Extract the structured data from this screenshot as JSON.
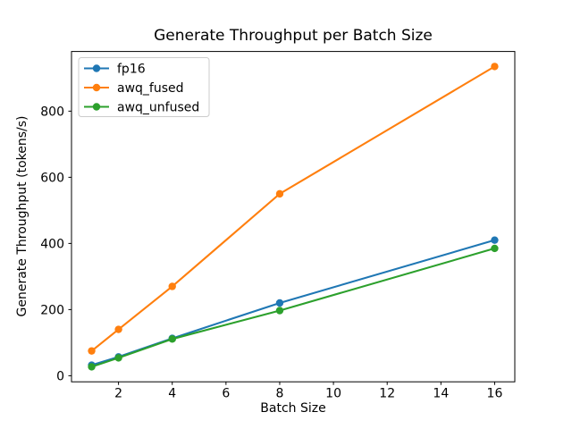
{
  "chart_data": {
    "type": "line",
    "title": "Generate Throughput per Batch Size",
    "xlabel": "Batch Size",
    "ylabel": "Generate Throughput (tokens/s)",
    "x": [
      1,
      2,
      4,
      8,
      16
    ],
    "series": [
      {
        "name": "fp16",
        "color": "#1f77b4",
        "values": [
          32,
          57,
          113,
          220,
          410
        ]
      },
      {
        "name": "awq_fused",
        "color": "#ff7f0e",
        "values": [
          75,
          140,
          270,
          550,
          935
        ]
      },
      {
        "name": "awq_unfused",
        "color": "#2ca02c",
        "values": [
          27,
          54,
          111,
          197,
          385
        ]
      }
    ],
    "xticks": [
      2,
      4,
      6,
      8,
      10,
      12,
      14,
      16
    ],
    "yticks": [
      0,
      200,
      400,
      600,
      800
    ],
    "xlim": [
      0.25,
      16.75
    ],
    "ylim": [
      -18.4,
      980.4
    ],
    "grid": false,
    "marker": "circle",
    "legend_position": "upper left",
    "axis_color": "#000000",
    "tick_label_color": "#000000",
    "legend_border_color": "#cccccc",
    "plot_background": "#ffffff"
  }
}
